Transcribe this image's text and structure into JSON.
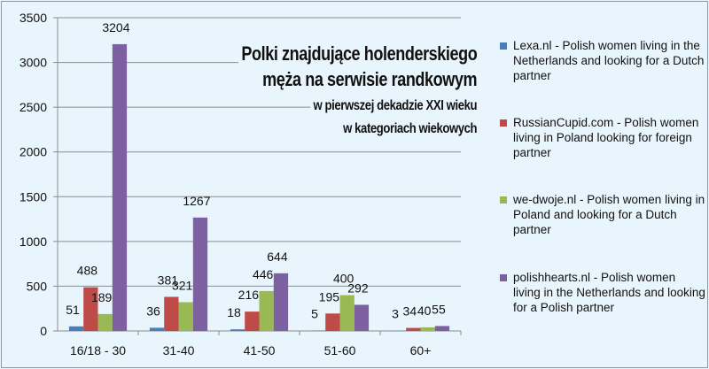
{
  "chart_data": {
    "type": "bar",
    "title": "Polki znajdujące holenderskiego męża na serwisie randkowym",
    "subtitle_lines": [
      "w pierwszej dekadzie XXI wieku",
      "w kategoriach wiekowych"
    ],
    "title_lines": [
      "Polki znajdujące holenderskiego",
      "męża na serwisie randkowym"
    ],
    "categories": [
      "16/18 - 30",
      "31-40",
      "41-50",
      "51-60",
      "60+"
    ],
    "series": [
      {
        "name": "Lexa.nl - Polish women living in the Netherlands and looking for a Dutch partner",
        "color": "#4a7ebb",
        "values": [
          51,
          36,
          18,
          5,
          3
        ]
      },
      {
        "name": "RussianCupid.com - Polish women living in Poland looking for foreign partner",
        "color": "#be4b48",
        "values": [
          488,
          381,
          216,
          195,
          34
        ]
      },
      {
        "name": "we-dwoje.nl - Polish women living in Poland and looking for a Dutch partner",
        "color": "#98b954",
        "values": [
          189,
          321,
          446,
          400,
          40
        ]
      },
      {
        "name": "polishhearts.nl - Polish women living in the Netherlands and looking for a Polish partner",
        "color": "#7d60a0",
        "values": [
          3204,
          1267,
          644,
          292,
          55
        ]
      }
    ],
    "xlabel": "",
    "ylabel": "",
    "ylim": [
      0,
      3500
    ],
    "yticks": [
      0,
      500,
      1000,
      1500,
      2000,
      2500,
      3000,
      3500
    ],
    "grid": true,
    "legend": "right"
  }
}
